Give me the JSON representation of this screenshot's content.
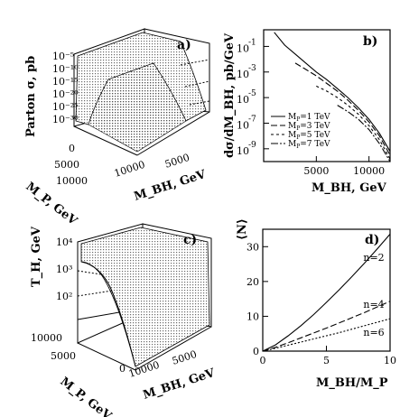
{
  "chart_data": [
    {
      "id": "a",
      "type": "surface3d",
      "panel_label": "a)",
      "zlabel": "Parton σ, pb",
      "xlabel": "M_BH, GeV",
      "ylabel": "M_P, GeV",
      "z_ticks": [
        "10⁻⁵",
        "10⁻¹⁰",
        "10⁻¹⁵",
        "10⁻²⁰",
        "10⁻²⁵",
        "10⁻³⁰"
      ],
      "x_ticks": [
        "5000",
        "10000"
      ],
      "y_ticks": [
        "0",
        "5000",
        "10000"
      ]
    },
    {
      "id": "b",
      "type": "line",
      "panel_label": "b)",
      "xlabel": "M_BH, GeV",
      "ylabel": "dσ/dM_BH, pb/GeV",
      "x_ticks": [
        5000,
        10000
      ],
      "xlim": [
        0,
        12000
      ],
      "y_log": true,
      "y_ticks": [
        {
          "base": "10",
          "exp": "-1",
          "value": 0.1
        },
        {
          "base": "10",
          "exp": "-3",
          "value": 0.001
        },
        {
          "base": "10",
          "exp": "-5",
          "value": 1e-05
        },
        {
          "base": "10",
          "exp": "-7",
          "value": 1e-07
        },
        {
          "base": "10",
          "exp": "-9",
          "value": 1e-09
        }
      ],
      "ylim_exp": [
        -10,
        0.3
      ],
      "legend_position": "lower-left",
      "series": [
        {
          "name": "M_P = 1 TeV",
          "sub": "P",
          "label_text": "=1 TeV",
          "dash": "none",
          "x": [
            1000,
            2000,
            3000,
            4000,
            5000,
            6000,
            7000,
            8000,
            9000,
            10000,
            11000,
            12000
          ],
          "log10y": [
            0.1,
            -0.9,
            -1.6,
            -2.3,
            -3.0,
            -3.6,
            -4.3,
            -5.0,
            -5.8,
            -6.7,
            -7.8,
            -9.2
          ]
        },
        {
          "name": "M_P = 3 TeV",
          "sub": "P",
          "label_text": "=3 TeV",
          "dash": "7,3",
          "x": [
            3000,
            4000,
            5000,
            6000,
            7000,
            8000,
            9000,
            10000,
            11000,
            12000
          ],
          "log10y": [
            -2.3,
            -2.8,
            -3.3,
            -3.9,
            -4.5,
            -5.2,
            -6.0,
            -6.9,
            -8.0,
            -9.5
          ]
        },
        {
          "name": "M_P = 5 TeV",
          "sub": "P",
          "label_text": "=5 TeV",
          "dash": "3,3",
          "x": [
            5000,
            6000,
            7000,
            8000,
            9000,
            10000,
            11000,
            12000
          ],
          "log10y": [
            -4.1,
            -4.5,
            -5.0,
            -5.6,
            -6.3,
            -7.2,
            -8.3,
            -9.8
          ]
        },
        {
          "name": "M_P = 7 TeV",
          "sub": "P",
          "label_text": "=7 TeV",
          "dash": "8,2,2,2",
          "x": [
            7000,
            8000,
            9000,
            10000,
            11000,
            12000
          ],
          "log10y": [
            -5.6,
            -6.1,
            -6.7,
            -7.5,
            -8.6,
            -10.0
          ]
        }
      ]
    },
    {
      "id": "c",
      "type": "surface3d",
      "panel_label": "c)",
      "zlabel": "T_H, GeV",
      "xlabel": "M_BH, GeV",
      "ylabel": "M_P, GeV",
      "z_ticks": [
        "10⁴",
        "10³",
        "10²"
      ],
      "x_ticks": [
        "5000",
        "10000"
      ],
      "y_ticks": [
        "0",
        "5000",
        "10000"
      ]
    },
    {
      "id": "d",
      "type": "line",
      "panel_label": "d)",
      "xlabel": "M_BH/M_P",
      "ylabel": "⟨N⟩",
      "xlim": [
        0,
        10
      ],
      "ylim": [
        0,
        35
      ],
      "x_ticks": [
        0,
        5,
        10
      ],
      "y_ticks": [
        0,
        10,
        20,
        30
      ],
      "series": [
        {
          "name": "n=2",
          "dash": "none",
          "x": [
            0,
            1,
            2,
            3,
            4,
            5,
            6,
            7,
            8,
            9,
            10
          ],
          "y": [
            0,
            1.8,
            4.4,
            7.3,
            10.5,
            14.0,
            17.6,
            21.4,
            25.3,
            29.4,
            33.6
          ]
        },
        {
          "name": "n=4",
          "dash": "7,3",
          "x": [
            0,
            1,
            2,
            3,
            4,
            5,
            6,
            7,
            8,
            9,
            10
          ],
          "y": [
            0,
            1.1,
            2.4,
            3.8,
            5.2,
            6.6,
            8.1,
            9.6,
            11.1,
            12.7,
            14.3
          ]
        },
        {
          "name": "n=6",
          "dash": "2,2",
          "x": [
            0,
            1,
            2,
            3,
            4,
            5,
            6,
            7,
            8,
            9,
            10
          ],
          "y": [
            0,
            0.8,
            1.7,
            2.6,
            3.5,
            4.4,
            5.3,
            6.3,
            7.3,
            8.3,
            9.3
          ]
        }
      ]
    }
  ]
}
